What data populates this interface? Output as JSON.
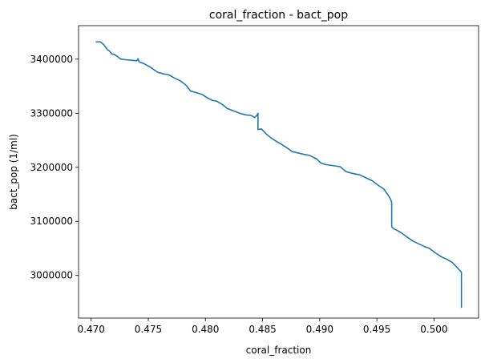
{
  "chart_data": {
    "type": "line",
    "title": "coral_fraction - bact_pop",
    "xlabel": "coral_fraction",
    "ylabel": "bact_pop (1/ml)",
    "xlim": [
      0.4689,
      0.5039
    ],
    "ylim": [
      2921000,
      3462000
    ],
    "xticks": [
      0.47,
      0.475,
      0.48,
      0.485,
      0.49,
      0.495,
      0.5
    ],
    "xtick_labels": [
      "0.470",
      "0.475",
      "0.480",
      "0.485",
      "0.490",
      "0.495",
      "0.500"
    ],
    "yticks": [
      3000000,
      3100000,
      3200000,
      3300000,
      3400000
    ],
    "ytick_labels": [
      "3000000",
      "3100000",
      "3200000",
      "3300000",
      "3400000"
    ],
    "grid": false,
    "line_color": "#1f77b4",
    "series": [
      {
        "name": "",
        "points": [
          [
            0.4704,
            3432000
          ],
          [
            0.4708,
            3432000
          ],
          [
            0.4711,
            3427000
          ],
          [
            0.4714,
            3418000
          ],
          [
            0.4716,
            3415000
          ],
          [
            0.4718,
            3410000
          ],
          [
            0.472,
            3409000
          ],
          [
            0.4723,
            3405000
          ],
          [
            0.4726,
            3400000
          ],
          [
            0.473,
            3399000
          ],
          [
            0.4735,
            3398000
          ],
          [
            0.474,
            3397000
          ],
          [
            0.4741,
            3401000
          ],
          [
            0.4742,
            3395000
          ],
          [
            0.4746,
            3392000
          ],
          [
            0.4752,
            3385000
          ],
          [
            0.4758,
            3376000
          ],
          [
            0.4763,
            3373000
          ],
          [
            0.4768,
            3371000
          ],
          [
            0.4773,
            3365000
          ],
          [
            0.4778,
            3360000
          ],
          [
            0.4783,
            3352000
          ],
          [
            0.4787,
            3341000
          ],
          [
            0.4792,
            3338000
          ],
          [
            0.4797,
            3335000
          ],
          [
            0.4802,
            3328000
          ],
          [
            0.4806,
            3324000
          ],
          [
            0.481,
            3322000
          ],
          [
            0.4815,
            3316000
          ],
          [
            0.4819,
            3309000
          ],
          [
            0.4825,
            3304000
          ],
          [
            0.483,
            3300000
          ],
          [
            0.4835,
            3297000
          ],
          [
            0.484,
            3296000
          ],
          [
            0.4843,
            3292000
          ],
          [
            0.4845,
            3296000
          ],
          [
            0.4846,
            3300000
          ],
          [
            0.4846,
            3270000
          ],
          [
            0.4849,
            3271000
          ],
          [
            0.4853,
            3262000
          ],
          [
            0.4857,
            3255000
          ],
          [
            0.4862,
            3248000
          ],
          [
            0.4867,
            3242000
          ],
          [
            0.4872,
            3235000
          ],
          [
            0.4876,
            3229000
          ],
          [
            0.488,
            3227000
          ],
          [
            0.4886,
            3224000
          ],
          [
            0.4891,
            3222000
          ],
          [
            0.4897,
            3216000
          ],
          [
            0.4901,
            3208000
          ],
          [
            0.4905,
            3205000
          ],
          [
            0.4912,
            3203000
          ],
          [
            0.4918,
            3201000
          ],
          [
            0.4923,
            3192000
          ],
          [
            0.4928,
            3189000
          ],
          [
            0.4935,
            3186000
          ],
          [
            0.4941,
            3180000
          ],
          [
            0.4946,
            3175000
          ],
          [
            0.4951,
            3167000
          ],
          [
            0.4956,
            3160000
          ],
          [
            0.496,
            3148000
          ],
          [
            0.4962,
            3141000
          ],
          [
            0.4963,
            3135000
          ],
          [
            0.4963,
            3090000
          ],
          [
            0.4965,
            3086000
          ],
          [
            0.4968,
            3083000
          ],
          [
            0.4972,
            3078000
          ],
          [
            0.4977,
            3070000
          ],
          [
            0.4982,
            3063000
          ],
          [
            0.4987,
            3058000
          ],
          [
            0.4992,
            3053000
          ],
          [
            0.4996,
            3050000
          ],
          [
            0.5001,
            3042000
          ],
          [
            0.5006,
            3035000
          ],
          [
            0.5011,
            3030000
          ],
          [
            0.5016,
            3024000
          ],
          [
            0.502,
            3015000
          ],
          [
            0.5024,
            3006000
          ],
          [
            0.5024,
            2940000
          ]
        ]
      }
    ]
  }
}
